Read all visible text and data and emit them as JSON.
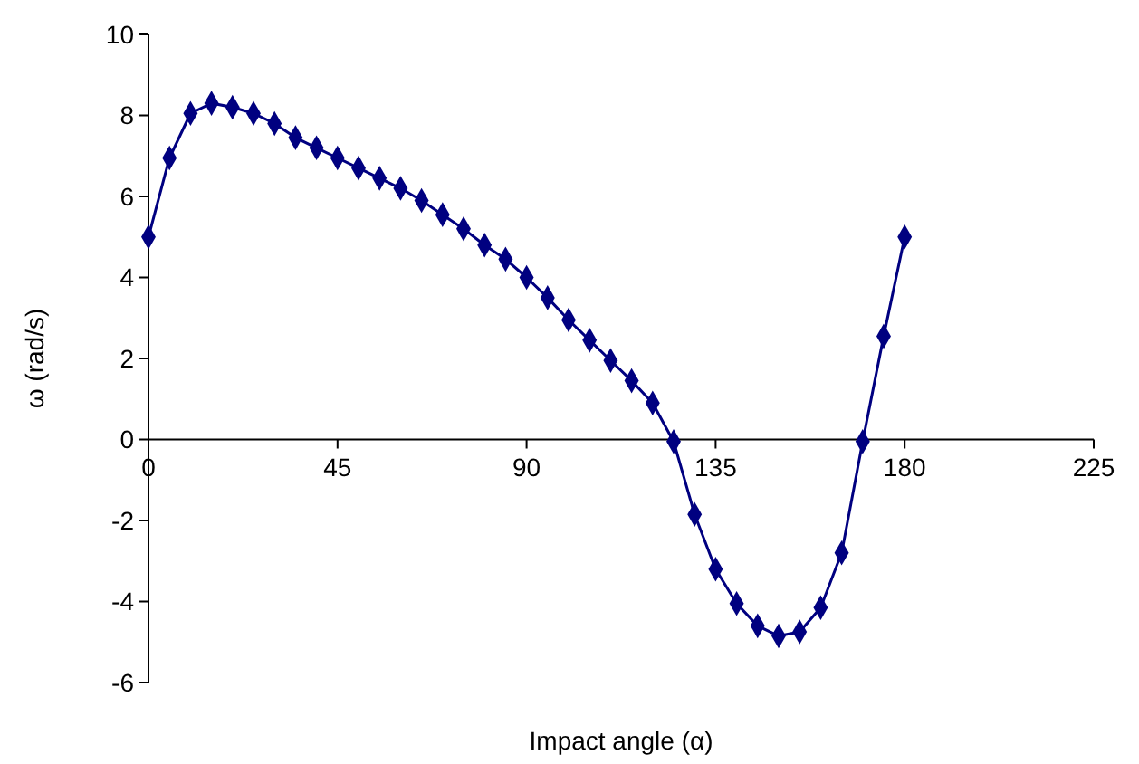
{
  "chart_data": {
    "type": "line",
    "xlabel": "Impact angle (α)",
    "ylabel": "ω (rad/s)",
    "x": [
      0,
      5,
      10,
      15,
      20,
      25,
      30,
      35,
      40,
      45,
      50,
      55,
      60,
      65,
      70,
      75,
      80,
      85,
      90,
      95,
      100,
      105,
      110,
      115,
      120,
      125,
      130,
      135,
      140,
      145,
      150,
      155,
      160,
      165,
      170,
      175,
      180
    ],
    "series": [
      {
        "color": "#000080",
        "values": [
          5.0,
          6.95,
          8.05,
          8.3,
          8.2,
          8.05,
          7.8,
          7.45,
          7.2,
          6.95,
          6.7,
          6.45,
          6.2,
          5.9,
          5.55,
          5.2,
          4.8,
          4.45,
          4.0,
          3.5,
          2.95,
          2.45,
          1.95,
          1.45,
          0.9,
          -0.05,
          -1.85,
          -3.2,
          -4.05,
          -4.6,
          -4.85,
          -4.75,
          -4.15,
          -2.8,
          -0.05,
          2.55,
          5.0
        ]
      }
    ],
    "xlim": [
      0,
      225
    ],
    "xticks": [
      0,
      45,
      90,
      135,
      180,
      225
    ],
    "ylim": [
      -6,
      10
    ],
    "yticks": [
      -6,
      -4,
      -2,
      0,
      2,
      4,
      6,
      8,
      10
    ],
    "marker": "diamond",
    "line_style": "solid",
    "grid": false
  }
}
